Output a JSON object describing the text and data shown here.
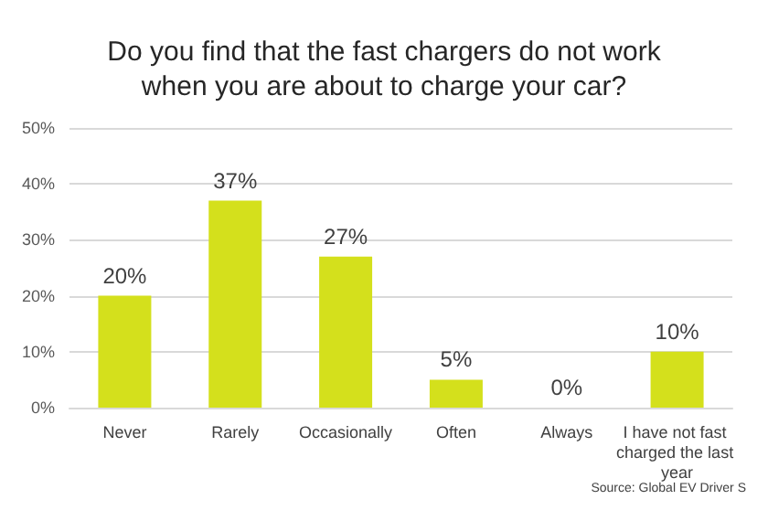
{
  "chart_data": {
    "type": "bar",
    "title": "Do you find that the fast chargers do not work\nwhen you are about to charge your car?",
    "categories": [
      "Never",
      "Rarely",
      "Occasionally",
      "Often",
      "Always",
      "I have not fast charged the last year"
    ],
    "values": [
      20,
      37,
      27,
      5,
      0,
      10
    ],
    "color": "#d4e01c",
    "value_labels": [
      "20%",
      "37%",
      "27%",
      "5%",
      "0%",
      "10%"
    ],
    "ylim": [
      0,
      50
    ],
    "yticks": [
      {
        "value": 0,
        "label": "0%"
      },
      {
        "value": 10,
        "label": "10%"
      },
      {
        "value": 20,
        "label": "20%"
      },
      {
        "value": 30,
        "label": "30%"
      },
      {
        "value": 40,
        "label": "40%"
      },
      {
        "value": 50,
        "label": "50%"
      }
    ],
    "grid": "y",
    "annotations": [
      "Source: Global EV Driver S"
    ]
  }
}
